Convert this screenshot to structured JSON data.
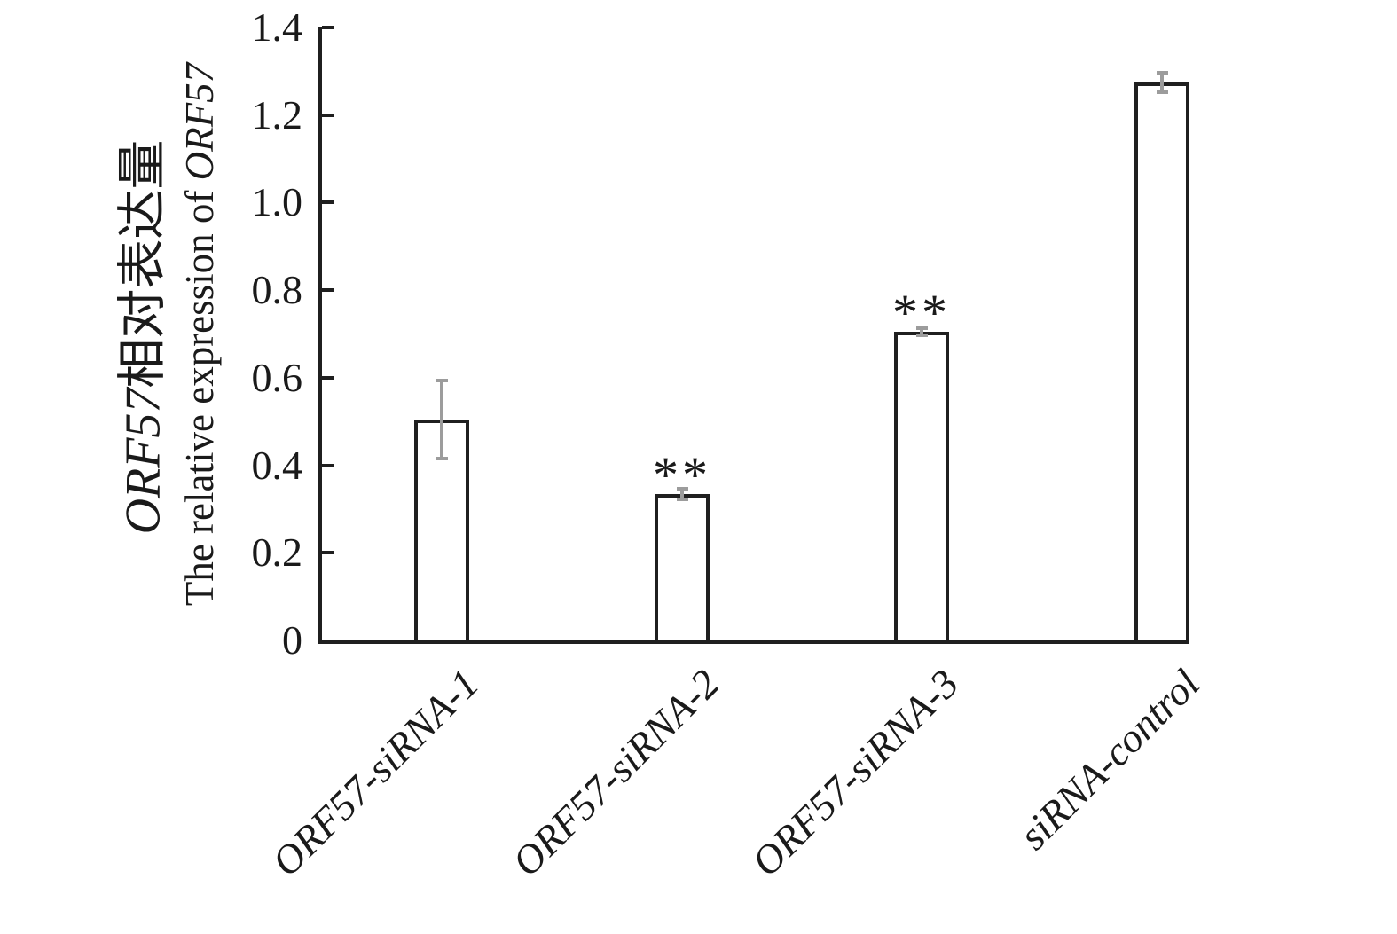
{
  "chart_data": {
    "type": "bar",
    "categories": [
      "ORF57-siRNA-1",
      "ORF57-siRNA-2",
      "ORF57-siRNA-3",
      "siRNA-control"
    ],
    "values": [
      0.505,
      0.335,
      0.705,
      1.275
    ],
    "errors": [
      0.09,
      0.012,
      0.008,
      0.022
    ],
    "annotations": [
      "",
      "**",
      "**",
      ""
    ],
    "title": "",
    "xlabel": "",
    "ylabel_zh": [
      {
        "text": "ORF57",
        "italic": true
      },
      {
        "text": "相对表达量",
        "italic": false
      }
    ],
    "ylabel_en": [
      {
        "text": "The relative expression of ",
        "italic": false
      },
      {
        "text": "ORF57",
        "italic": true
      }
    ],
    "yticks": [
      0,
      0.2,
      0.4,
      0.6,
      0.8,
      1.0,
      1.2,
      1.4
    ],
    "ytick_labels": [
      "0",
      "0.2",
      "0.4",
      "0.6",
      "0.8",
      "1.0",
      "1.2",
      "1.4"
    ],
    "ylim": [
      0,
      1.4
    ],
    "grid": false,
    "legend": "none",
    "bar_fill_color": "#ffffff",
    "bar_edge_color": "#1f1f1f",
    "error_bar_color": "#9c9c9c",
    "text_color": "#1a1a1a"
  }
}
